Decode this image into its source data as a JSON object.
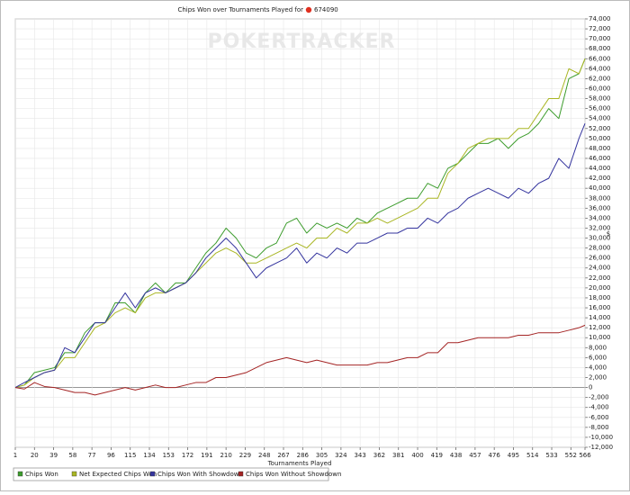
{
  "chart_data": {
    "type": "line",
    "title": "Chips Won over Tournaments Played for",
    "player": "674090",
    "watermark": "POKERTRACKER",
    "x_label": "Tournaments Played",
    "y_label": "$",
    "grid": true,
    "legend": "bottom",
    "x": [
      1,
      10,
      20,
      30,
      40,
      50,
      60,
      70,
      80,
      90,
      100,
      110,
      120,
      130,
      140,
      150,
      160,
      170,
      180,
      190,
      200,
      210,
      220,
      230,
      240,
      250,
      260,
      270,
      280,
      290,
      300,
      310,
      320,
      330,
      340,
      350,
      360,
      370,
      380,
      390,
      400,
      410,
      420,
      430,
      440,
      450,
      460,
      470,
      480,
      490,
      500,
      510,
      520,
      530,
      540,
      550,
      560,
      566
    ],
    "xlim": [
      1,
      566
    ],
    "xticks": [
      1,
      20,
      39,
      58,
      77,
      96,
      115,
      134,
      153,
      172,
      191,
      210,
      229,
      248,
      267,
      286,
      305,
      324,
      343,
      362,
      381,
      400,
      419,
      438,
      457,
      476,
      495,
      514,
      533,
      552,
      566
    ],
    "ylim": [
      -12000,
      74000
    ],
    "yticks": [
      {
        "value": -12000,
        "label": "-12,000"
      },
      {
        "value": -10000,
        "label": "-10,000"
      },
      {
        "value": -8000,
        "label": "-8,000"
      },
      {
        "value": -6000,
        "label": "-6,000"
      },
      {
        "value": -4000,
        "label": "-4,000"
      },
      {
        "value": -2000,
        "label": "-2,000"
      },
      0,
      {
        "value": 2000,
        "label": "2,000"
      },
      {
        "value": 4000,
        "label": "4,000"
      },
      {
        "value": 6000,
        "label": "6,000"
      },
      {
        "value": 8000,
        "label": "8,000"
      },
      {
        "value": 10000,
        "label": "10,000"
      },
      {
        "value": 12000,
        "label": "12,000"
      },
      {
        "value": 14000,
        "label": "14,000"
      },
      {
        "value": 16000,
        "label": "16,000"
      },
      {
        "value": 18000,
        "label": "18,000"
      },
      {
        "value": 20000,
        "label": "20,000"
      },
      {
        "value": 22000,
        "label": "22,000"
      },
      {
        "value": 24000,
        "label": "24,000"
      },
      {
        "value": 26000,
        "label": "26,000"
      },
      {
        "value": 28000,
        "label": "28,000"
      },
      {
        "value": 30000,
        "label": "30,000"
      },
      {
        "value": 32000,
        "label": "32,000"
      },
      {
        "value": 34000,
        "label": "34,000"
      },
      {
        "value": 36000,
        "label": "36,000"
      },
      {
        "value": 38000,
        "label": "38,000"
      },
      {
        "value": 40000,
        "label": "40,000"
      },
      {
        "value": 42000,
        "label": "42,000"
      },
      {
        "value": 44000,
        "label": "44,000"
      },
      {
        "value": 46000,
        "label": "46,000"
      },
      {
        "value": 48000,
        "label": "48,000"
      },
      {
        "value": 50000,
        "label": "50,000"
      },
      {
        "value": 52000,
        "label": "52,000"
      },
      {
        "value": 54000,
        "label": "54,000"
      },
      {
        "value": 56000,
        "label": "56,000"
      },
      {
        "value": 58000,
        "label": "58,000"
      },
      {
        "value": 60000,
        "label": "60,000"
      },
      {
        "value": 62000,
        "label": "62,000"
      },
      {
        "value": 64000,
        "label": "64,000"
      },
      {
        "value": 66000,
        "label": "66,000"
      },
      {
        "value": 68000,
        "label": "68,000"
      },
      {
        "value": 70000,
        "label": "70,000"
      },
      {
        "value": 72000,
        "label": "72,000"
      },
      {
        "value": 74000,
        "label": "74,000"
      }
    ],
    "series": [
      {
        "name": "Chips Won",
        "color": "#3c9c2c",
        "values": [
          0,
          500,
          3000,
          3500,
          4000,
          7000,
          7000,
          11000,
          13000,
          13000,
          17000,
          17000,
          15000,
          19000,
          21000,
          19000,
          21000,
          21000,
          24000,
          27000,
          29000,
          32000,
          30000,
          27000,
          26000,
          28000,
          29000,
          33000,
          34000,
          31000,
          33000,
          32000,
          33000,
          32000,
          34000,
          33000,
          35000,
          36000,
          37000,
          38000,
          38000,
          41000,
          40000,
          44000,
          45000,
          47000,
          49000,
          49000,
          50000,
          48000,
          50000,
          51000,
          53000,
          56000,
          54000,
          62000,
          63000,
          66000
        ]
      },
      {
        "name": "Net Expected Chips Won",
        "color": "#a9b624",
        "values": [
          0,
          500,
          2000,
          3000,
          3500,
          6000,
          6000,
          9000,
          12000,
          13000,
          15000,
          16000,
          15000,
          18000,
          19000,
          19000,
          20000,
          21000,
          23000,
          25000,
          27000,
          28000,
          27000,
          25000,
          25000,
          26000,
          27000,
          28000,
          29000,
          28000,
          30000,
          30000,
          32000,
          31000,
          33000,
          33000,
          34000,
          33000,
          34000,
          35000,
          36000,
          38000,
          38000,
          43000,
          45000,
          48000,
          49000,
          50000,
          50000,
          50000,
          52000,
          52000,
          55000,
          58000,
          58000,
          64000,
          63000,
          66000
        ]
      },
      {
        "name": "Chips Won With Showdown",
        "color": "#34349e",
        "values": [
          0,
          1000,
          2000,
          3000,
          3500,
          8000,
          7000,
          10000,
          13000,
          13000,
          16000,
          19000,
          16000,
          19000,
          20000,
          19000,
          20000,
          21000,
          23000,
          26000,
          28000,
          30000,
          28000,
          25000,
          22000,
          24000,
          25000,
          26000,
          28000,
          25000,
          27000,
          26000,
          28000,
          27000,
          29000,
          29000,
          30000,
          31000,
          31000,
          32000,
          32000,
          34000,
          33000,
          35000,
          36000,
          38000,
          39000,
          40000,
          39000,
          38000,
          40000,
          39000,
          41000,
          42000,
          46000,
          44000,
          50000,
          53000
        ]
      },
      {
        "name": "Chips Won Without Showdown",
        "color": "#a42424",
        "values": [
          0,
          -300,
          1000,
          200,
          0,
          -500,
          -1000,
          -1000,
          -1500,
          -1000,
          -500,
          0,
          -500,
          0,
          500,
          0,
          0,
          500,
          1000,
          1000,
          2000,
          2000,
          2500,
          3000,
          4000,
          5000,
          5500,
          6000,
          5500,
          5000,
          5500,
          5000,
          4500,
          4500,
          4500,
          4500,
          5000,
          5000,
          5500,
          6000,
          6000,
          7000,
          7000,
          9000,
          9000,
          9500,
          10000,
          10000,
          10000,
          10000,
          10500,
          10500,
          11000,
          11000,
          11000,
          11500,
          12000,
          12500
        ]
      }
    ]
  }
}
